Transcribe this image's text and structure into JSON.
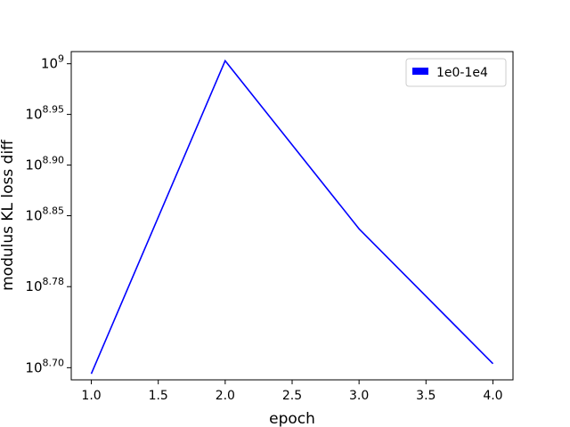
{
  "chart_data": {
    "type": "line",
    "xlabel": "epoch",
    "ylabel": "modulus KL loss diff",
    "xlim": [
      0.85,
      4.15
    ],
    "ylim": [
      8.688,
      9.012
    ],
    "y_scale": "log10",
    "x_ticks": [
      {
        "value": 1.0,
        "label": "1.0"
      },
      {
        "value": 1.5,
        "label": "1.5"
      },
      {
        "value": 2.0,
        "label": "2.0"
      },
      {
        "value": 2.5,
        "label": "2.5"
      },
      {
        "value": 3.0,
        "label": "3.0"
      },
      {
        "value": 3.5,
        "label": "3.5"
      },
      {
        "value": 4.0,
        "label": "4.0"
      }
    ],
    "y_ticks": [
      {
        "value": 9.0,
        "base": "10",
        "exp": "9"
      },
      {
        "value": 8.95,
        "base": "10",
        "exp": "8.95"
      },
      {
        "value": 8.9,
        "base": "10",
        "exp": "8.90"
      },
      {
        "value": 8.85,
        "base": "10",
        "exp": "8.85"
      },
      {
        "value": 8.78,
        "base": "10",
        "exp": "8.78"
      },
      {
        "value": 8.7,
        "base": "10",
        "exp": "8.70"
      }
    ],
    "series": [
      {
        "name": "1e0-1e4",
        "color": "#0000ff",
        "x": [
          1.0,
          2.0,
          3.0,
          4.0
        ],
        "y_log10": [
          8.694,
          9.003,
          8.837,
          8.704
        ]
      }
    ],
    "legend_position": "top-right",
    "grid": false
  }
}
